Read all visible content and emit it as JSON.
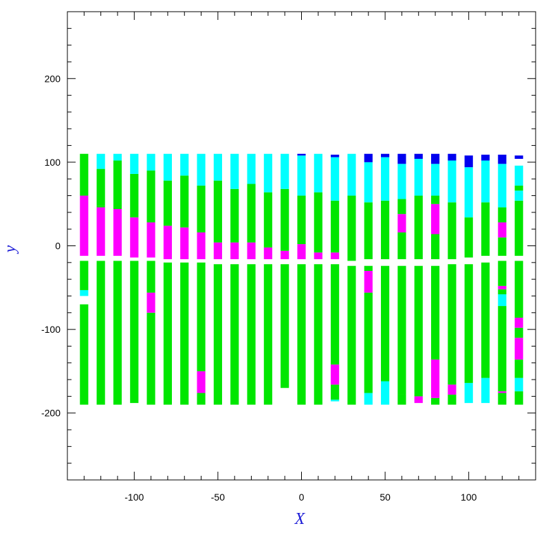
{
  "chart_data": {
    "type": "bar",
    "title": "",
    "xlabel": "X",
    "ylabel": "y",
    "xlim": [
      -140,
      140
    ],
    "ylim": [
      -280,
      280
    ],
    "x_ticks": [
      -100,
      -50,
      0,
      50,
      100
    ],
    "y_ticks": [
      -200,
      -100,
      0,
      100,
      200
    ],
    "x_tick_labels": [
      "-100",
      "-50",
      "0",
      "50",
      "100"
    ],
    "y_tick_labels": [
      "-200",
      "-100",
      "0",
      "100",
      "200"
    ],
    "grid": false,
    "legend": "none",
    "colors": {
      "green": "#00e600",
      "magenta": "#ff00ff",
      "cyan": "#00ffff",
      "blue": "#0000ee",
      "axis": "#000000"
    },
    "bar_half_width": 2.5,
    "columns": [
      {
        "x": -130,
        "segments": [
          {
            "y0": -190,
            "y1": -70,
            "color": "green"
          },
          {
            "y0": -60,
            "y1": -53,
            "color": "cyan"
          },
          {
            "y0": -53,
            "y1": -18,
            "color": "green"
          },
          {
            "y0": -12,
            "y1": 60,
            "color": "magenta"
          },
          {
            "y0": 60,
            "y1": 110,
            "color": "green"
          }
        ]
      },
      {
        "x": -120,
        "segments": [
          {
            "y0": -190,
            "y1": -18,
            "color": "green"
          },
          {
            "y0": -12,
            "y1": 46,
            "color": "magenta"
          },
          {
            "y0": 46,
            "y1": 48,
            "color": "green"
          },
          {
            "y0": 48,
            "y1": 92,
            "color": "green"
          },
          {
            "y0": 92,
            "y1": 110,
            "color": "cyan"
          }
        ]
      },
      {
        "x": -110,
        "segments": [
          {
            "y0": -190,
            "y1": -18,
            "color": "green"
          },
          {
            "y0": -12,
            "y1": 44,
            "color": "magenta"
          },
          {
            "y0": 44,
            "y1": 102,
            "color": "green"
          },
          {
            "y0": 102,
            "y1": 110,
            "color": "cyan"
          }
        ]
      },
      {
        "x": -100,
        "segments": [
          {
            "y0": -188,
            "y1": -18,
            "color": "green"
          },
          {
            "y0": -14,
            "y1": 34,
            "color": "magenta"
          },
          {
            "y0": 34,
            "y1": 86,
            "color": "green"
          },
          {
            "y0": 86,
            "y1": 110,
            "color": "cyan"
          }
        ]
      },
      {
        "x": -90,
        "segments": [
          {
            "y0": -190,
            "y1": -80,
            "color": "green"
          },
          {
            "y0": -80,
            "y1": -56,
            "color": "magenta"
          },
          {
            "y0": -56,
            "y1": -18,
            "color": "green"
          },
          {
            "y0": -14,
            "y1": 28,
            "color": "magenta"
          },
          {
            "y0": 28,
            "y1": 90,
            "color": "green"
          },
          {
            "y0": 90,
            "y1": 110,
            "color": "cyan"
          }
        ]
      },
      {
        "x": -80,
        "segments": [
          {
            "y0": -190,
            "y1": -20,
            "color": "green"
          },
          {
            "y0": -16,
            "y1": 24,
            "color": "magenta"
          },
          {
            "y0": 24,
            "y1": 78,
            "color": "green"
          },
          {
            "y0": 78,
            "y1": 110,
            "color": "cyan"
          }
        ]
      },
      {
        "x": -70,
        "segments": [
          {
            "y0": -190,
            "y1": -20,
            "color": "green"
          },
          {
            "y0": -16,
            "y1": 22,
            "color": "magenta"
          },
          {
            "y0": 22,
            "y1": 84,
            "color": "green"
          },
          {
            "y0": 84,
            "y1": 110,
            "color": "cyan"
          }
        ]
      },
      {
        "x": -60,
        "segments": [
          {
            "y0": -190,
            "y1": -176,
            "color": "green"
          },
          {
            "y0": -176,
            "y1": -150,
            "color": "magenta"
          },
          {
            "y0": -150,
            "y1": -20,
            "color": "green"
          },
          {
            "y0": -16,
            "y1": 16,
            "color": "magenta"
          },
          {
            "y0": 16,
            "y1": 72,
            "color": "green"
          },
          {
            "y0": 72,
            "y1": 110,
            "color": "cyan"
          }
        ]
      },
      {
        "x": -50,
        "segments": [
          {
            "y0": -190,
            "y1": -22,
            "color": "green"
          },
          {
            "y0": -16,
            "y1": 4,
            "color": "magenta"
          },
          {
            "y0": 4,
            "y1": 78,
            "color": "green"
          },
          {
            "y0": 78,
            "y1": 110,
            "color": "cyan"
          }
        ]
      },
      {
        "x": -40,
        "segments": [
          {
            "y0": -190,
            "y1": -22,
            "color": "green"
          },
          {
            "y0": -16,
            "y1": 4,
            "color": "magenta"
          },
          {
            "y0": 4,
            "y1": 68,
            "color": "green"
          },
          {
            "y0": 68,
            "y1": 110,
            "color": "cyan"
          }
        ]
      },
      {
        "x": -30,
        "segments": [
          {
            "y0": -190,
            "y1": -22,
            "color": "green"
          },
          {
            "y0": -16,
            "y1": 4,
            "color": "magenta"
          },
          {
            "y0": 4,
            "y1": 74,
            "color": "green"
          },
          {
            "y0": 74,
            "y1": 110,
            "color": "cyan"
          }
        ]
      },
      {
        "x": -20,
        "segments": [
          {
            "y0": -190,
            "y1": -22,
            "color": "green"
          },
          {
            "y0": -16,
            "y1": -2,
            "color": "magenta"
          },
          {
            "y0": -2,
            "y1": 64,
            "color": "green"
          },
          {
            "y0": 64,
            "y1": 110,
            "color": "cyan"
          }
        ]
      },
      {
        "x": -10,
        "segments": [
          {
            "y0": -170,
            "y1": -22,
            "color": "green"
          },
          {
            "y0": -16,
            "y1": -6,
            "color": "magenta"
          },
          {
            "y0": -6,
            "y1": 68,
            "color": "green"
          },
          {
            "y0": 68,
            "y1": 110,
            "color": "cyan"
          }
        ]
      },
      {
        "x": 0,
        "segments": [
          {
            "y0": -190,
            "y1": -22,
            "color": "green"
          },
          {
            "y0": -16,
            "y1": 2,
            "color": "magenta"
          },
          {
            "y0": 2,
            "y1": 60,
            "color": "green"
          },
          {
            "y0": 60,
            "y1": 108,
            "color": "cyan"
          },
          {
            "y0": 108,
            "y1": 110,
            "color": "blue"
          }
        ]
      },
      {
        "x": 10,
        "segments": [
          {
            "y0": -190,
            "y1": -22,
            "color": "green"
          },
          {
            "y0": -16,
            "y1": -8,
            "color": "magenta"
          },
          {
            "y0": -8,
            "y1": 64,
            "color": "green"
          },
          {
            "y0": 64,
            "y1": 110,
            "color": "cyan"
          }
        ]
      },
      {
        "x": 20,
        "segments": [
          {
            "y0": -186,
            "y1": -184,
            "color": "cyan"
          },
          {
            "y0": -184,
            "y1": -166,
            "color": "green"
          },
          {
            "y0": -166,
            "y1": -142,
            "color": "magenta"
          },
          {
            "y0": -142,
            "y1": -22,
            "color": "green"
          },
          {
            "y0": -16,
            "y1": -8,
            "color": "magenta"
          },
          {
            "y0": -8,
            "y1": 54,
            "color": "green"
          },
          {
            "y0": 54,
            "y1": 106,
            "color": "cyan"
          },
          {
            "y0": 106,
            "y1": 109,
            "color": "blue"
          }
        ]
      },
      {
        "x": 30,
        "segments": [
          {
            "y0": -190,
            "y1": -24,
            "color": "green"
          },
          {
            "y0": -18,
            "y1": 60,
            "color": "green"
          },
          {
            "y0": 60,
            "y1": 110,
            "color": "cyan"
          }
        ]
      },
      {
        "x": 40,
        "segments": [
          {
            "y0": -190,
            "y1": -176,
            "color": "cyan"
          },
          {
            "y0": -176,
            "y1": -56,
            "color": "green"
          },
          {
            "y0": -56,
            "y1": -30,
            "color": "magenta"
          },
          {
            "y0": -30,
            "y1": -24,
            "color": "green"
          },
          {
            "y0": -16,
            "y1": 52,
            "color": "green"
          },
          {
            "y0": 52,
            "y1": 100,
            "color": "cyan"
          },
          {
            "y0": 100,
            "y1": 110,
            "color": "blue"
          }
        ]
      },
      {
        "x": 50,
        "segments": [
          {
            "y0": -190,
            "y1": -162,
            "color": "cyan"
          },
          {
            "y0": -162,
            "y1": -24,
            "color": "green"
          },
          {
            "y0": -16,
            "y1": 54,
            "color": "green"
          },
          {
            "y0": 54,
            "y1": 106,
            "color": "cyan"
          },
          {
            "y0": 106,
            "y1": 110,
            "color": "blue"
          }
        ]
      },
      {
        "x": 60,
        "segments": [
          {
            "y0": -190,
            "y1": -178,
            "color": "green"
          },
          {
            "y0": -178,
            "y1": -24,
            "color": "green"
          },
          {
            "y0": -16,
            "y1": 16,
            "color": "green"
          },
          {
            "y0": 16,
            "y1": 38,
            "color": "magenta"
          },
          {
            "y0": 38,
            "y1": 56,
            "color": "green"
          },
          {
            "y0": 56,
            "y1": 98,
            "color": "cyan"
          },
          {
            "y0": 98,
            "y1": 110,
            "color": "blue"
          }
        ]
      },
      {
        "x": 70,
        "segments": [
          {
            "y0": -188,
            "y1": -180,
            "color": "magenta"
          },
          {
            "y0": -180,
            "y1": -24,
            "color": "green"
          },
          {
            "y0": -16,
            "y1": 60,
            "color": "green"
          },
          {
            "y0": 60,
            "y1": 104,
            "color": "cyan"
          },
          {
            "y0": 104,
            "y1": 110,
            "color": "blue"
          }
        ]
      },
      {
        "x": 80,
        "segments": [
          {
            "y0": -190,
            "y1": -182,
            "color": "green"
          },
          {
            "y0": -182,
            "y1": -136,
            "color": "magenta"
          },
          {
            "y0": -136,
            "y1": -24,
            "color": "green"
          },
          {
            "y0": -16,
            "y1": 14,
            "color": "green"
          },
          {
            "y0": 14,
            "y1": 50,
            "color": "magenta"
          },
          {
            "y0": 50,
            "y1": 60,
            "color": "green"
          },
          {
            "y0": 60,
            "y1": 98,
            "color": "cyan"
          },
          {
            "y0": 98,
            "y1": 110,
            "color": "blue"
          }
        ]
      },
      {
        "x": 90,
        "segments": [
          {
            "y0": -190,
            "y1": -178,
            "color": "green"
          },
          {
            "y0": -178,
            "y1": -166,
            "color": "magenta"
          },
          {
            "y0": -166,
            "y1": -22,
            "color": "green"
          },
          {
            "y0": -16,
            "y1": 52,
            "color": "green"
          },
          {
            "y0": 52,
            "y1": 102,
            "color": "cyan"
          },
          {
            "y0": 102,
            "y1": 110,
            "color": "blue"
          }
        ]
      },
      {
        "x": 100,
        "segments": [
          {
            "y0": -188,
            "y1": -164,
            "color": "cyan"
          },
          {
            "y0": -164,
            "y1": -22,
            "color": "green"
          },
          {
            "y0": -14,
            "y1": 34,
            "color": "green"
          },
          {
            "y0": 34,
            "y1": 94,
            "color": "cyan"
          },
          {
            "y0": 94,
            "y1": 108,
            "color": "blue"
          }
        ]
      },
      {
        "x": 110,
        "segments": [
          {
            "y0": -188,
            "y1": -158,
            "color": "cyan"
          },
          {
            "y0": -158,
            "y1": -20,
            "color": "green"
          },
          {
            "y0": -12,
            "y1": 52,
            "color": "green"
          },
          {
            "y0": 52,
            "y1": 102,
            "color": "cyan"
          },
          {
            "y0": 102,
            "y1": 109,
            "color": "blue"
          }
        ]
      },
      {
        "x": 120,
        "segments": [
          {
            "y0": -190,
            "y1": -176,
            "color": "green"
          },
          {
            "y0": -176,
            "y1": -174,
            "color": "magenta"
          },
          {
            "y0": -174,
            "y1": -72,
            "color": "green"
          },
          {
            "y0": -72,
            "y1": -58,
            "color": "cyan"
          },
          {
            "y0": -58,
            "y1": -52,
            "color": "green"
          },
          {
            "y0": -52,
            "y1": -48,
            "color": "magenta"
          },
          {
            "y0": -48,
            "y1": -18,
            "color": "green"
          },
          {
            "y0": -12,
            "y1": 10,
            "color": "green"
          },
          {
            "y0": 10,
            "y1": 28,
            "color": "magenta"
          },
          {
            "y0": 28,
            "y1": 46,
            "color": "green"
          },
          {
            "y0": 46,
            "y1": 98,
            "color": "cyan"
          },
          {
            "y0": 98,
            "y1": 109,
            "color": "blue"
          }
        ]
      },
      {
        "x": 130,
        "segments": [
          {
            "y0": -190,
            "y1": -174,
            "color": "green"
          },
          {
            "y0": -174,
            "y1": -158,
            "color": "cyan"
          },
          {
            "y0": -158,
            "y1": -136,
            "color": "green"
          },
          {
            "y0": -136,
            "y1": -110,
            "color": "magenta"
          },
          {
            "y0": -110,
            "y1": -98,
            "color": "green"
          },
          {
            "y0": -98,
            "y1": -86,
            "color": "magenta"
          },
          {
            "y0": -86,
            "y1": -18,
            "color": "green"
          },
          {
            "y0": -12,
            "y1": 54,
            "color": "green"
          },
          {
            "y0": 54,
            "y1": 66,
            "color": "cyan"
          },
          {
            "y0": 66,
            "y1": 72,
            "color": "green"
          },
          {
            "y0": 72,
            "y1": 96,
            "color": "cyan"
          },
          {
            "y0": 96,
            "y1": 104,
            "color": "white"
          },
          {
            "y0": 104,
            "y1": 108,
            "color": "blue"
          }
        ]
      }
    ]
  }
}
